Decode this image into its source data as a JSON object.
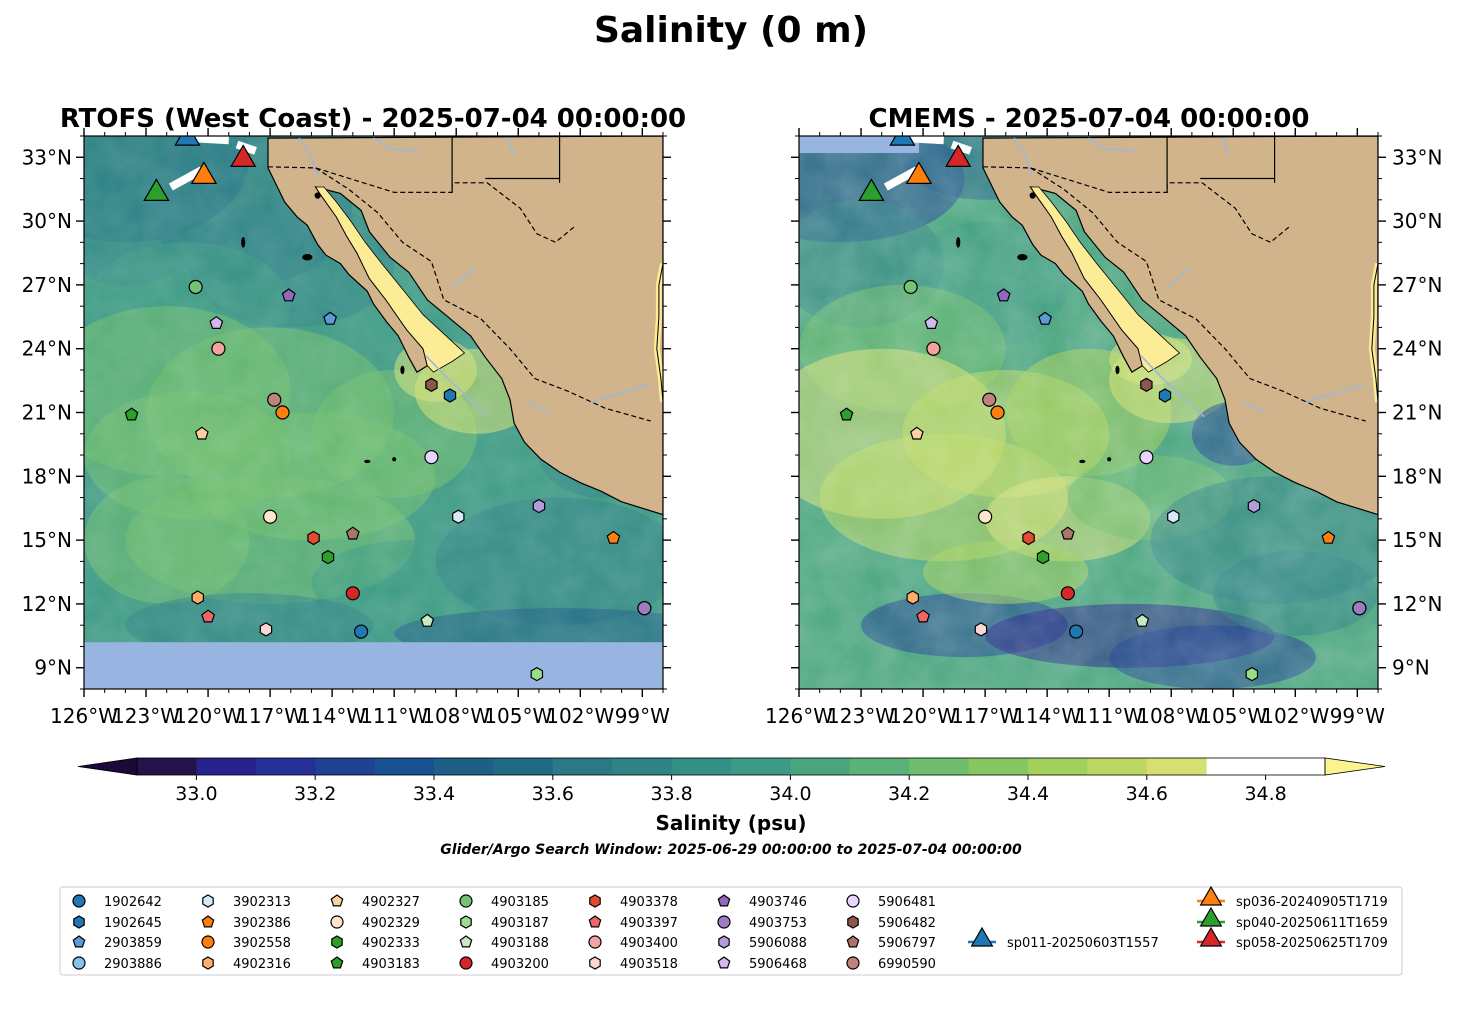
{
  "figure": {
    "title": "Salinity (0 m)",
    "colorbar_label": "Salinity (psu)",
    "window_note": "Glider/Argo Search Window: 2025-06-29 00:00:00 to 2025-07-04 00:00:00"
  },
  "colors": {
    "land": "#d2b48c",
    "gulf": "#fcec96",
    "nodata": "#97b5e0",
    "cmap": [
      "#24124a",
      "#28208b",
      "#242f97",
      "#1f4193",
      "#175191",
      "#1e5f88",
      "#1e6c84",
      "#2a7986",
      "#2f8387",
      "#348f87",
      "#3d9a84",
      "#4aa57f",
      "#5bb278",
      "#6fbd6d",
      "#88c662",
      "#a2d05b",
      "#bcd863",
      "#d6e072"
    ],
    "cmap_low": "#1a0a3a",
    "cmap_high": "#fcf290"
  },
  "panels": [
    {
      "title": "RTOFS (West Coast) - 2025-07-04 00:00:00"
    },
    {
      "title": "CMEMS - 2025-07-04 00:00:00"
    }
  ],
  "chart_data": {
    "type": "heatmap",
    "xlim": [
      -126,
      -98
    ],
    "ylim": [
      8,
      34
    ],
    "xticks": [
      -126,
      -123,
      -120,
      -117,
      -114,
      -111,
      -108,
      -105,
      -102,
      -99
    ],
    "xticklabels": [
      "126°W",
      "123°W",
      "120°W",
      "117°W",
      "114°W",
      "111°W",
      "108°W",
      "105°W",
      "102°W",
      "99°W"
    ],
    "yticks": [
      9,
      12,
      15,
      18,
      21,
      24,
      27,
      30,
      33
    ],
    "yticklabels": [
      "9°N",
      "12°N",
      "15°N",
      "18°N",
      "21°N",
      "24°N",
      "27°N",
      "30°N",
      "33°N"
    ],
    "colorbar": {
      "vmin": 32.9,
      "vmax": 34.9,
      "step": 0.1,
      "extend": "both",
      "ticks": [
        33.0,
        33.2,
        33.4,
        33.6,
        33.8,
        34.0,
        34.2,
        34.4,
        34.6,
        34.8
      ],
      "ticklabels": [
        "33.0",
        "33.2",
        "33.4",
        "33.6",
        "33.8",
        "34.0",
        "34.2",
        "34.4",
        "34.6",
        "34.8"
      ]
    },
    "rtofs_southern_limit": 10.2,
    "floats": [
      {
        "id": "1902642",
        "marker": "o",
        "color": "#1f77b4",
        "lon": -112.6,
        "lat": 10.7
      },
      {
        "id": "1902645",
        "marker": "h",
        "color": "#1f77b4",
        "lon": -108.3,
        "lat": 21.8
      },
      {
        "id": "2903859",
        "marker": "p",
        "color": "#5b9bd5",
        "lon": -114.1,
        "lat": 25.4
      },
      {
        "id": "2903886",
        "marker": "o",
        "color": "#85c1e9",
        "lon": -98.9,
        "lat": 11.8
      },
      {
        "id": "3902313",
        "marker": "h",
        "color": "#d6eaf8",
        "lon": -107.9,
        "lat": 16.1
      },
      {
        "id": "3902386",
        "marker": "p",
        "color": "#ff7f0e",
        "lon": -100.4,
        "lat": 15.1
      },
      {
        "id": "3902558",
        "marker": "o",
        "color": "#ff7f0e",
        "lon": -116.4,
        "lat": 21.0
      },
      {
        "id": "4902316",
        "marker": "h",
        "color": "#fdae6b",
        "lon": -120.5,
        "lat": 12.3
      },
      {
        "id": "4902327",
        "marker": "p",
        "color": "#fdd0a2",
        "lon": -120.3,
        "lat": 20.0
      },
      {
        "id": "4902329",
        "marker": "o",
        "color": "#fee6ce",
        "lon": -117.0,
        "lat": 16.1
      },
      {
        "id": "4902333",
        "marker": "h",
        "color": "#2ca02c",
        "lon": -114.2,
        "lat": 14.2
      },
      {
        "id": "4903183",
        "marker": "p",
        "color": "#2ca02c",
        "lon": -123.7,
        "lat": 20.9
      },
      {
        "id": "4903185",
        "marker": "o",
        "color": "#74c476",
        "lon": -120.6,
        "lat": 26.9
      },
      {
        "id": "4903187",
        "marker": "h",
        "color": "#98df8a",
        "lon": -104.1,
        "lat": 8.7
      },
      {
        "id": "4903188",
        "marker": "p",
        "color": "#c7e9c0",
        "lon": -109.4,
        "lat": 11.2
      },
      {
        "id": "4903200",
        "marker": "o",
        "color": "#d62728",
        "lon": -113.0,
        "lat": 12.5
      },
      {
        "id": "4903378",
        "marker": "h",
        "color": "#e34a33",
        "lon": -114.9,
        "lat": 15.1
      },
      {
        "id": "4903397",
        "marker": "p",
        "color": "#f06565",
        "lon": -120.0,
        "lat": 11.4
      },
      {
        "id": "4903400",
        "marker": "o",
        "color": "#f4a3a3",
        "lon": -119.5,
        "lat": 24.0
      },
      {
        "id": "4903518",
        "marker": "h",
        "color": "#fcd5d5",
        "lon": -117.2,
        "lat": 10.8
      },
      {
        "id": "4903746",
        "marker": "p",
        "color": "#9467bd",
        "lon": -116.1,
        "lat": 26.5
      },
      {
        "id": "4903753",
        "marker": "o",
        "color": "#9e7cc1",
        "lon": -98.9,
        "lat": 11.8
      },
      {
        "id": "5906088",
        "marker": "h",
        "color": "#b39ddb",
        "lon": -104.0,
        "lat": 16.6
      },
      {
        "id": "5906468",
        "marker": "p",
        "color": "#d4b8f0",
        "lon": -119.6,
        "lat": 25.2
      },
      {
        "id": "5906481",
        "marker": "o",
        "color": "#e8d5ff",
        "lon": -109.2,
        "lat": 18.9
      },
      {
        "id": "5906482",
        "marker": "h",
        "color": "#8c564b",
        "lon": -109.2,
        "lat": 22.3
      },
      {
        "id": "5906797",
        "marker": "p",
        "color": "#a9776a",
        "lon": -113.0,
        "lat": 15.3
      },
      {
        "id": "6990590",
        "marker": "o",
        "color": "#c0827a",
        "lon": -116.8,
        "lat": 21.6
      }
    ],
    "gliders": [
      {
        "id": "sp011-20250603T1557",
        "color": "#1f77b4",
        "lon": -121.0,
        "lat": 33.9
      },
      {
        "id": "sp036-20240905T1719",
        "color": "#ff7f0e",
        "lon": -120.2,
        "lat": 32.1
      },
      {
        "id": "sp040-20250611T1659",
        "color": "#2ca02c",
        "lon": -122.5,
        "lat": 31.3
      },
      {
        "id": "sp058-20250625T1709",
        "color": "#d62728",
        "lon": -118.3,
        "lat": 32.9
      }
    ]
  }
}
